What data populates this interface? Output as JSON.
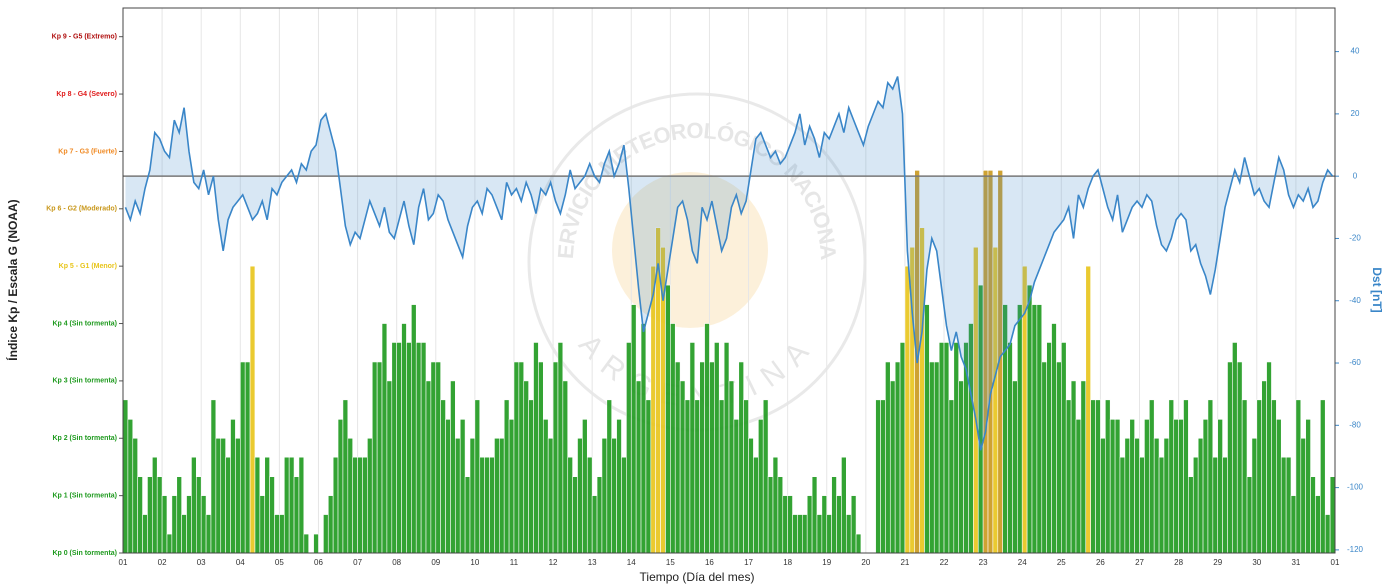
{
  "chart_data": {
    "type": "bar",
    "xlabel": "Tiempo (Día del mes)",
    "ylabel": "Índice Kp / Escala G (NOAA)",
    "y2label": "Dst [nT]",
    "xticks": [
      "01",
      "02",
      "03",
      "04",
      "05",
      "06",
      "07",
      "08",
      "09",
      "10",
      "11",
      "12",
      "13",
      "14",
      "15",
      "16",
      "17",
      "18",
      "19",
      "20",
      "21",
      "22",
      "23",
      "24",
      "25",
      "26",
      "27",
      "28",
      "29",
      "30",
      "31",
      "01"
    ],
    "ylim": [
      0,
      9.5
    ],
    "yticks": [
      {
        "value": 0,
        "label": "Kp 0 (Sin tormenta)"
      },
      {
        "value": 1,
        "label": "Kp 1 (Sin tormenta)"
      },
      {
        "value": 2,
        "label": "Kp 2 (Sin tormenta)"
      },
      {
        "value": 3,
        "label": "Kp 3 (Sin tormenta)"
      },
      {
        "value": 4,
        "label": "Kp 4 (Sin tormenta)"
      },
      {
        "value": 5,
        "label": "Kp 5 - G1 (Menor)"
      },
      {
        "value": 6,
        "label": "Kp 6 - G2 (Moderado)"
      },
      {
        "value": 7,
        "label": "Kp 7 - G3 (Fuerte)"
      },
      {
        "value": 8,
        "label": "Kp 8 - G4 (Severo)"
      },
      {
        "value": 9,
        "label": "Kp 9 - G5 (Extremo)"
      }
    ],
    "level_colors": [
      "#1e9a1e",
      "#1e9a1e",
      "#1e9a1e",
      "#1e9a1e",
      "#1e9a1e",
      "#e8c51a",
      "#c9981c",
      "#f08a24",
      "#e01b1b",
      "#b01010"
    ],
    "y2lim": [
      -121,
      54
    ],
    "y2ticks": [
      -120,
      -100,
      -80,
      -60,
      -40,
      -20,
      0,
      20,
      40
    ],
    "grid": true,
    "watermark": {
      "top": "SERVICIO METEOROLÓGICO NACIONAL",
      "bottom": "ARGENTINA"
    },
    "series": [
      {
        "values": [
          2.67,
          2.33,
          2,
          1.33,
          0.67,
          1.33,
          1.67,
          1.33,
          1,
          0.33,
          1,
          1.33,
          0.67,
          1,
          1.67,
          1.33,
          1,
          0.67,
          2.67,
          2,
          2,
          1.67,
          2.33,
          2,
          3.33,
          3.33,
          5,
          1.67,
          1,
          1.67,
          1.33,
          0.67,
          0.67,
          1.67,
          1.67,
          1.33,
          1.67,
          0.33,
          0,
          0.33,
          0,
          0.67,
          1,
          1.67,
          2.33,
          2.67,
          2,
          1.67,
          1.67,
          1.67,
          2,
          3.33,
          3.33,
          4,
          3,
          3.67,
          3.67,
          4,
          3.67,
          4.33,
          3.67,
          3.67,
          3,
          3.33,
          3.33,
          2.67,
          2.33,
          3,
          2,
          2.33,
          1.33,
          2,
          2.67,
          1.67,
          1.67,
          1.67,
          2,
          2,
          2.67,
          2.33,
          3.33,
          3.33,
          3,
          2.67,
          3.67,
          3.33,
          2.33,
          2,
          3.33,
          3.67,
          3,
          1.67,
          1.33,
          2,
          2.33,
          1.67,
          1,
          1.33,
          2,
          2.67,
          2,
          2.33,
          1.67,
          3.67,
          4.33,
          3,
          4,
          2.67,
          5,
          5.67,
          5.33,
          4.67,
          4,
          3.33,
          3,
          2.67,
          3.67,
          2.67,
          3.33,
          4,
          3.33,
          3.67,
          2.67,
          3.67,
          3,
          2.33,
          3.33,
          2.67,
          2,
          1.67,
          2.33,
          2.67,
          1.33,
          1.67,
          1.33,
          1,
          1,
          0.67,
          0.67,
          0.67,
          1,
          1.33,
          0.67,
          1,
          0.67,
          1.33,
          1,
          1.67,
          0.67,
          1,
          0.33,
          0,
          0,
          0,
          2.67,
          2.67,
          3.33,
          3,
          3.33,
          3.67,
          5,
          5.33,
          6.67,
          5.67,
          4.33,
          3.33,
          3.33,
          3.67,
          3.67,
          2.67,
          3.67,
          3,
          3.67,
          4,
          5.33,
          4.67,
          6.67,
          6.67,
          5.33,
          6.67,
          4.33,
          3.67,
          3,
          4.33,
          5,
          4.67,
          4.33,
          4.33,
          3.33,
          3.67,
          4,
          3.33,
          3.67,
          2.67,
          3,
          2.33,
          3,
          5,
          2.67,
          2.67,
          2,
          2.67,
          2.33,
          2.33,
          1.67,
          2,
          2.33,
          2,
          1.67,
          2.33,
          2.67,
          2,
          1.67,
          2,
          2.67,
          2.33,
          2.33,
          2.67,
          1.33,
          1.67,
          2,
          2.33,
          2.67,
          1.67,
          2.33,
          1.67,
          3.33,
          3.67,
          3.33,
          2.67,
          1.33,
          2,
          2.67,
          3,
          3.33,
          2.67,
          2.33,
          1.67,
          1.67,
          1,
          2.67,
          2,
          2.33,
          1.33,
          1,
          2.67,
          0.67,
          1.33
        ]
      },
      {
        "type": "line",
        "axis": "y2",
        "color": "#3a86c8",
        "values": [
          -10,
          -14,
          -8,
          -12,
          -4,
          2,
          14,
          12,
          8,
          6,
          18,
          14,
          22,
          8,
          -2,
          -4,
          2,
          -6,
          0,
          -14,
          -24,
          -14,
          -10,
          -8,
          -6,
          -10,
          -14,
          -12,
          -8,
          -14,
          -4,
          -6,
          -2,
          0,
          2,
          -2,
          4,
          2,
          8,
          10,
          18,
          20,
          14,
          8,
          -4,
          -16,
          -22,
          -18,
          -20,
          -14,
          -8,
          -12,
          -16,
          -10,
          -18,
          -20,
          -14,
          -8,
          -16,
          -22,
          -10,
          -4,
          -14,
          -12,
          -6,
          -8,
          -14,
          -18,
          -22,
          -26,
          -16,
          -10,
          -8,
          -12,
          -4,
          -6,
          -10,
          -14,
          -2,
          -6,
          -4,
          -8,
          -2,
          -6,
          -12,
          -4,
          -6,
          -2,
          -8,
          -12,
          -6,
          2,
          -4,
          -2,
          0,
          4,
          0,
          -2,
          4,
          8,
          0,
          4,
          10,
          -4,
          -20,
          -36,
          -50,
          -44,
          -38,
          -28,
          -40,
          -30,
          -20,
          -10,
          -8,
          -14,
          -24,
          -28,
          -10,
          -14,
          -8,
          -16,
          -24,
          -20,
          -10,
          -6,
          -12,
          -8,
          2,
          12,
          14,
          10,
          6,
          8,
          4,
          6,
          10,
          14,
          20,
          10,
          16,
          12,
          6,
          14,
          12,
          16,
          20,
          14,
          22,
          18,
          14,
          10,
          16,
          20,
          24,
          22,
          30,
          28,
          32,
          20,
          -24,
          -44,
          -60,
          -50,
          -30,
          -20,
          -24,
          -36,
          -48,
          -56,
          -50,
          -58,
          -62,
          -70,
          -78,
          -88,
          -82,
          -70,
          -64,
          -58,
          -56,
          -54,
          -48,
          -46,
          -44,
          -40,
          -34,
          -30,
          -26,
          -22,
          -18,
          -16,
          -14,
          -10,
          -20,
          -6,
          -10,
          -4,
          0,
          2,
          -4,
          -10,
          -14,
          -6,
          -18,
          -14,
          -10,
          -8,
          -10,
          -6,
          -8,
          -16,
          -22,
          -24,
          -20,
          -14,
          -12,
          -14,
          -24,
          -22,
          -28,
          -32,
          -38,
          -30,
          -20,
          -10,
          -4,
          2,
          -2,
          6,
          0,
          -6,
          -4,
          -8,
          -10,
          -2,
          6,
          2,
          -6,
          -10,
          -6,
          -8,
          -4,
          -10,
          -8,
          -2,
          2,
          0
        ]
      }
    ]
  }
}
